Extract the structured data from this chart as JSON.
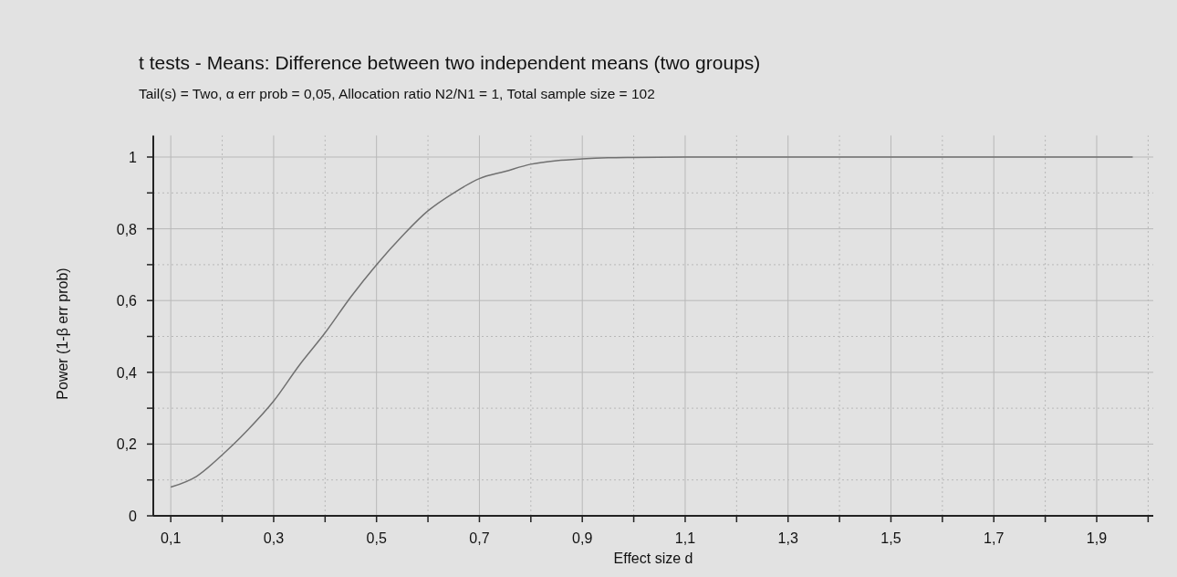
{
  "chart_data": {
    "type": "line",
    "title": "t tests - Means: Difference between two independent means (two groups)",
    "subtitle": "Tail(s) = Two, α err prob = 0,05, Allocation ratio N2/N1 = 1, Total sample size = 102",
    "xlabel": "Effect size d",
    "ylabel": "Power (1-β err prob)",
    "x": [
      0.1,
      0.15,
      0.2,
      0.25,
      0.3,
      0.35,
      0.4,
      0.45,
      0.5,
      0.55,
      0.6,
      0.65,
      0.7,
      0.75,
      0.8,
      0.85,
      0.9,
      0.95,
      1.0,
      1.1,
      1.2,
      1.4,
      1.6,
      1.8,
      1.97
    ],
    "series": [
      {
        "color": "#707070",
        "values": [
          0.08,
          0.11,
          0.17,
          0.24,
          0.32,
          0.42,
          0.51,
          0.61,
          0.7,
          0.78,
          0.85,
          0.9,
          0.94,
          0.96,
          0.98,
          0.99,
          0.995,
          0.998,
          0.999,
          1,
          1,
          1,
          1,
          1,
          1
        ]
      }
    ],
    "xlim": [
      0.066,
      2.01
    ],
    "xticks": [
      {
        "value": 0.1,
        "label": "0,1"
      },
      {
        "value": 0.2,
        "label": null
      },
      {
        "value": 0.3,
        "label": "0,3"
      },
      {
        "value": 0.4,
        "label": null
      },
      {
        "value": 0.5,
        "label": "0,5"
      },
      {
        "value": 0.6,
        "label": null
      },
      {
        "value": 0.7,
        "label": "0,7"
      },
      {
        "value": 0.8,
        "label": null
      },
      {
        "value": 0.9,
        "label": "0,9"
      },
      {
        "value": 1.0,
        "label": null
      },
      {
        "value": 1.1,
        "label": "1,1"
      },
      {
        "value": 1.2,
        "label": null
      },
      {
        "value": 1.3,
        "label": "1,3"
      },
      {
        "value": 1.4,
        "label": null
      },
      {
        "value": 1.5,
        "label": "1,5"
      },
      {
        "value": 1.6,
        "label": null
      },
      {
        "value": 1.7,
        "label": "1,7"
      },
      {
        "value": 1.8,
        "label": null
      },
      {
        "value": 1.9,
        "label": "1,9"
      },
      {
        "value": 2.0,
        "label": null
      }
    ],
    "ylim": [
      0,
      1.06
    ],
    "yticks": [
      0,
      {
        "value": 0.1,
        "label": null
      },
      {
        "value": 0.2,
        "label": "0,2"
      },
      {
        "value": 0.3,
        "label": null
      },
      {
        "value": 0.4,
        "label": "0,4"
      },
      {
        "value": 0.5,
        "label": null
      },
      {
        "value": 0.6,
        "label": "0,6"
      },
      {
        "value": 0.7,
        "label": null
      },
      {
        "value": 0.8,
        "label": "0,8"
      },
      {
        "value": 0.9,
        "label": null
      },
      1
    ],
    "grid": true,
    "line_style": "solid",
    "marker": "none"
  }
}
